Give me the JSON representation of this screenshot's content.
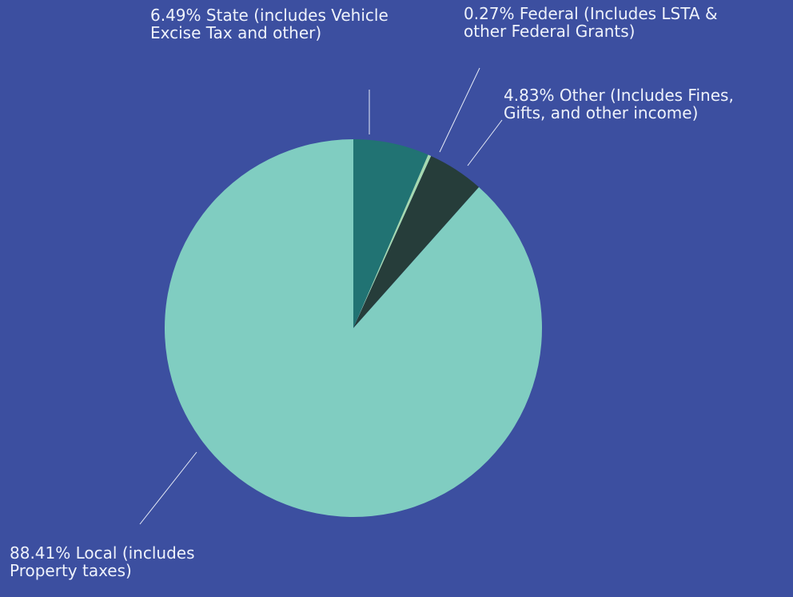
{
  "chart_data": {
    "type": "pie",
    "categories": [
      "State (includes Vehicle Excise Tax and other)",
      "Federal (Includes LSTA & other Federal Grants)",
      "Other (Includes Fines, Gifts, and other income)",
      "Local (includes Property taxes)"
    ],
    "values": [
      6.49,
      0.27,
      4.83,
      88.41
    ],
    "value_labels": [
      "6.49%",
      "0.27%",
      "4.83%",
      "88.41%"
    ],
    "colors": [
      "#217373",
      "#a6d9b0",
      "#263d3a",
      "#80cdc1"
    ]
  }
}
